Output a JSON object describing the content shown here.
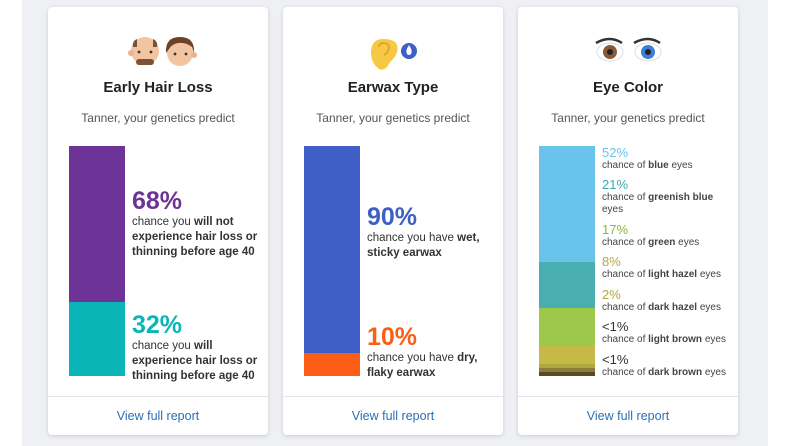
{
  "colors": {
    "hair_no": "#6e3396",
    "hair_yes": "#0ab5b8",
    "ear_wet": "#3f5fc6",
    "ear_dry": "#fd5e17",
    "blue": "#6ac3ea",
    "greenish_blue": "#48aeb0",
    "green": "#9cc84b",
    "light_hazel": "#c6b948",
    "dark_hazel": "#b0a83f",
    "light_brown": "#8a7d3b",
    "dark_brown": "#5c4a26"
  },
  "cards": [
    {
      "title": "Early Hair Loss",
      "subtitle": "Tanner, your genetics predict",
      "icon": "bald-and-haired-heads-icon",
      "footer": "View full report",
      "results": [
        {
          "percent": "68%",
          "value": 68,
          "pre": "chance you ",
          "bold": "will not experience hair loss or thinning before age 40",
          "post": ""
        },
        {
          "percent": "32%",
          "value": 32,
          "pre": "chance you ",
          "bold": "will experience hair loss or thinning before age 40",
          "post": ""
        }
      ]
    },
    {
      "title": "Earwax Type",
      "subtitle": "Tanner, your genetics predict",
      "icon": "ear-with-droplet-icon",
      "footer": "View full report",
      "results": [
        {
          "percent": "90%",
          "value": 90,
          "pre": "chance you have ",
          "bold": "wet, sticky earwax",
          "post": ""
        },
        {
          "percent": "10%",
          "value": 10,
          "pre": "chance you have ",
          "bold": "dry, flaky earwax",
          "post": ""
        }
      ]
    },
    {
      "title": "Eye Color",
      "subtitle": "Tanner, your genetics predict",
      "icon": "eyes-icon",
      "footer": "View full report",
      "results": [
        {
          "percent": "52%",
          "value": 52,
          "pre": "chance of ",
          "bold": "blue",
          "post": " eyes"
        },
        {
          "percent": "21%",
          "value": 21,
          "pre": "chance of ",
          "bold": "greenish blue",
          "post": " eyes"
        },
        {
          "percent": "17%",
          "value": 17,
          "pre": "chance of ",
          "bold": "green",
          "post": " eyes"
        },
        {
          "percent": "8%",
          "value": 8,
          "pre": "chance of ",
          "bold": "light hazel",
          "post": " eyes"
        },
        {
          "percent": "2%",
          "value": 2,
          "pre": "chance of ",
          "bold": "dark hazel",
          "post": " eyes"
        },
        {
          "percent": "<1%",
          "value": 0.5,
          "pre": "chance of ",
          "bold": "light brown",
          "post": " eyes"
        },
        {
          "percent": "<1%",
          "value": 0.5,
          "pre": "chance of ",
          "bold": "dark brown",
          "post": " eyes"
        }
      ]
    }
  ]
}
